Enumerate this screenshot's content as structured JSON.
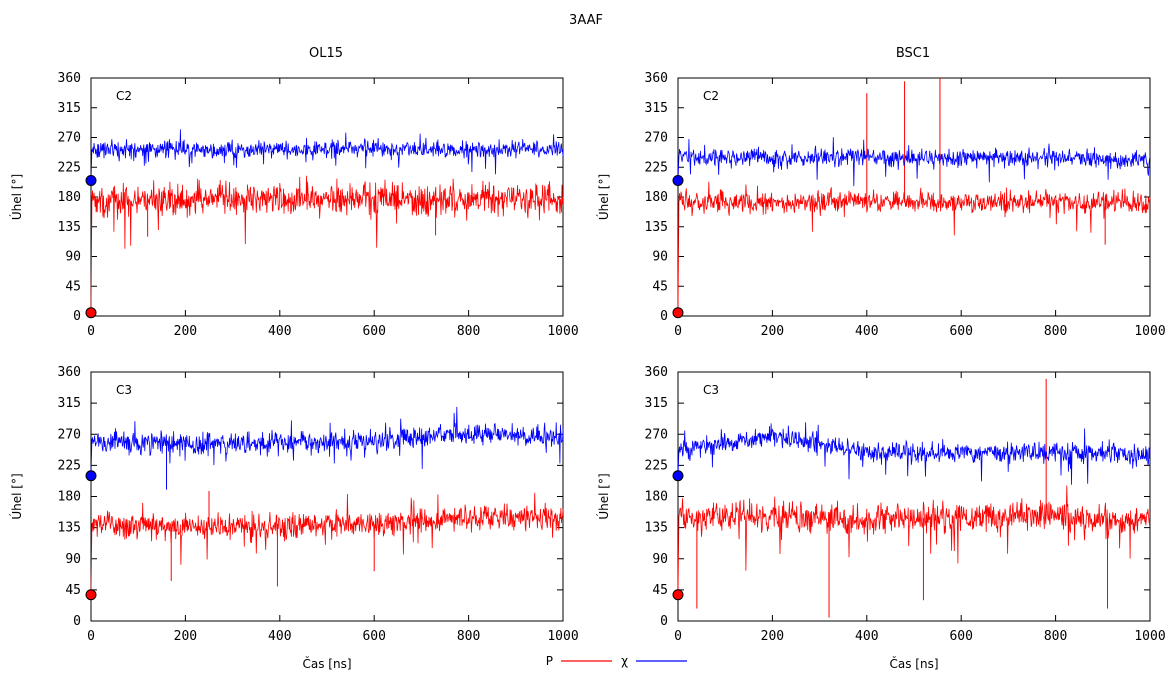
{
  "figure": {
    "title": "3AAF",
    "column_titles": [
      "OL15",
      "BSC1"
    ],
    "legend": [
      {
        "name": "P",
        "color": "#ff0000"
      },
      {
        "name": "χ",
        "color": "#0000ff"
      }
    ]
  },
  "chart_data": [
    {
      "type": "line",
      "panel": "C2",
      "column": "OL15",
      "xlabel": "",
      "ylabel": "Úhel [°]",
      "xlim": [
        0,
        1000
      ],
      "ylim": [
        0,
        360
      ],
      "xticks": [
        0,
        200,
        400,
        600,
        800,
        1000
      ],
      "yticks": [
        0,
        45,
        90,
        135,
        180,
        225,
        270,
        315,
        360
      ],
      "series": [
        {
          "name": "P",
          "color": "#ff0000",
          "start": 5,
          "mean": 175,
          "spread": 18,
          "spikes": [
            [
              120,
              120
            ],
            [
              730,
              122
            ]
          ],
          "x": [
            0,
            200,
            400,
            600,
            800,
            1000
          ],
          "y": [
            5,
            175,
            178,
            176,
            176,
            175
          ]
        },
        {
          "name": "χ",
          "color": "#0000ff",
          "start": 205,
          "mean": 252,
          "spread": 10,
          "spikes": [],
          "x": [
            0,
            200,
            400,
            600,
            800,
            1000
          ],
          "y": [
            205,
            252,
            252,
            253,
            252,
            253
          ]
        }
      ],
      "start_markers": [
        {
          "series": "χ",
          "x": 0,
          "y": 205
        },
        {
          "series": "P",
          "x": 0,
          "y": 5
        }
      ]
    },
    {
      "type": "line",
      "panel": "C2",
      "column": "BSC1",
      "xlabel": "",
      "ylabel": "Úhel [°]",
      "xlim": [
        0,
        1000
      ],
      "ylim": [
        0,
        360
      ],
      "xticks": [
        0,
        200,
        400,
        600,
        800,
        1000
      ],
      "yticks": [
        0,
        45,
        90,
        135,
        180,
        225,
        270,
        315,
        360
      ],
      "series": [
        {
          "name": "P",
          "color": "#ff0000",
          "start": 5,
          "mean": 172,
          "spread": 12,
          "spikes": [
            [
              400,
              337
            ],
            [
              480,
              355
            ],
            [
              555,
              360
            ],
            [
              905,
              108
            ]
          ],
          "x": [
            0,
            200,
            400,
            600,
            800,
            1000
          ],
          "y": [
            5,
            172,
            172,
            172,
            172,
            170
          ]
        },
        {
          "name": "χ",
          "color": "#0000ff",
          "start": 205,
          "mean": 240,
          "spread": 10,
          "spikes": [],
          "x": [
            0,
            200,
            400,
            600,
            800,
            1000
          ],
          "y": [
            205,
            240,
            240,
            239,
            240,
            236
          ]
        }
      ],
      "start_markers": [
        {
          "series": "χ",
          "x": 0,
          "y": 205
        },
        {
          "series": "P",
          "x": 0,
          "y": 5
        }
      ]
    },
    {
      "type": "line",
      "panel": "C3",
      "column": "OL15",
      "xlabel": "Čas [ns]",
      "ylabel": "Úhel [°]",
      "xlim": [
        0,
        1000
      ],
      "ylim": [
        0,
        360
      ],
      "xticks": [
        0,
        200,
        400,
        600,
        800,
        1000
      ],
      "yticks": [
        0,
        45,
        90,
        135,
        180,
        225,
        270,
        315,
        360
      ],
      "series": [
        {
          "name": "P",
          "color": "#ff0000",
          "start": 38,
          "mean": 140,
          "spread": 14,
          "spikes": [
            [
              250,
              188
            ],
            [
              395,
              50
            ],
            [
              170,
              58
            ],
            [
              600,
              72
            ]
          ],
          "x": [
            0,
            200,
            400,
            600,
            800,
            1000
          ],
          "y": [
            38,
            135,
            138,
            140,
            150,
            150
          ]
        },
        {
          "name": "χ",
          "color": "#0000ff",
          "start": 210,
          "mean": 262,
          "spread": 12,
          "spikes": [
            [
              160,
              190
            ]
          ],
          "x": [
            0,
            200,
            400,
            600,
            800,
            1000
          ],
          "y": [
            210,
            255,
            258,
            260,
            272,
            265
          ]
        }
      ],
      "start_markers": [
        {
          "series": "χ",
          "x": 0,
          "y": 210
        },
        {
          "series": "P",
          "x": 0,
          "y": 38
        }
      ]
    },
    {
      "type": "line",
      "panel": "C3",
      "column": "BSC1",
      "xlabel": "Čas [ns]",
      "ylabel": "Úhel [°]",
      "xlim": [
        0,
        1000
      ],
      "ylim": [
        0,
        360
      ],
      "xticks": [
        0,
        200,
        400,
        600,
        800,
        1000
      ],
      "yticks": [
        0,
        45,
        90,
        135,
        180,
        225,
        270,
        315,
        360
      ],
      "series": [
        {
          "name": "P",
          "color": "#ff0000",
          "start": 38,
          "mean": 150,
          "spread": 16,
          "spikes": [
            [
              40,
              18
            ],
            [
              320,
              5
            ],
            [
              780,
              350
            ],
            [
              520,
              30
            ],
            [
              910,
              18
            ]
          ],
          "x": [
            0,
            200,
            400,
            600,
            800,
            1000
          ],
          "y": [
            38,
            150,
            148,
            150,
            152,
            145
          ]
        },
        {
          "name": "χ",
          "color": "#0000ff",
          "start": 210,
          "mean": 245,
          "spread": 11,
          "spikes": [],
          "x": [
            0,
            200,
            400,
            600,
            800,
            1000
          ],
          "y": [
            210,
            268,
            245,
            243,
            243,
            240
          ]
        }
      ],
      "start_markers": [
        {
          "series": "χ",
          "x": 0,
          "y": 210
        },
        {
          "series": "P",
          "x": 0,
          "y": 38
        }
      ]
    }
  ]
}
